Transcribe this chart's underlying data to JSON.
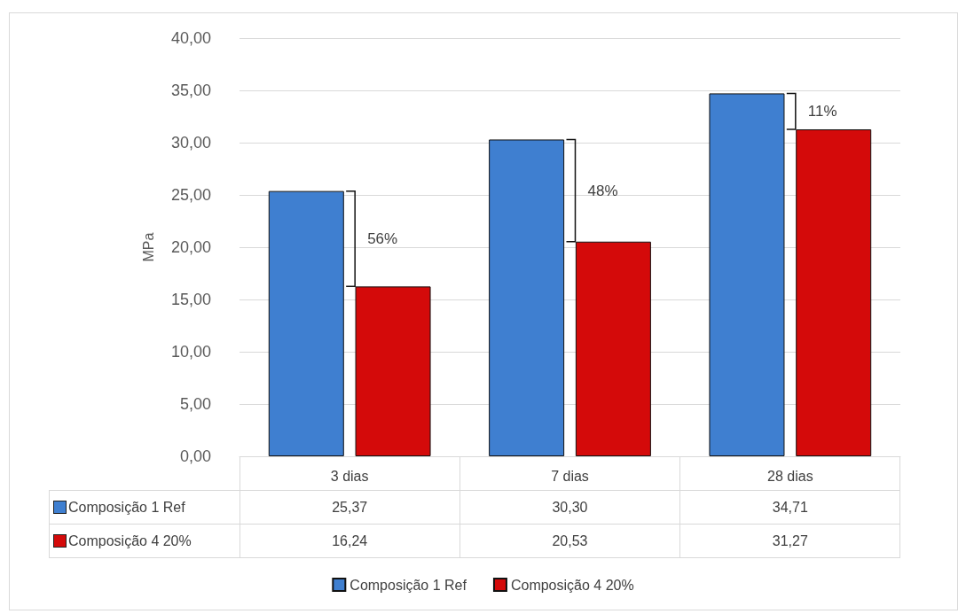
{
  "chart_data": {
    "type": "bar",
    "ylabel": "MPa",
    "categories": [
      "3 dias",
      "7 dias",
      "28 dias"
    ],
    "series": [
      {
        "name": "Composição 1 Ref",
        "color": "#3f7fd0",
        "values": [
          25.37,
          30.3,
          34.71
        ],
        "value_labels": [
          "25,37",
          "30,30",
          "34,71"
        ]
      },
      {
        "name": "Composição 4 20%",
        "color": "#d40a0a",
        "values": [
          16.24,
          20.53,
          31.27
        ],
        "value_labels": [
          "16,24",
          "20,53",
          "31,27"
        ]
      }
    ],
    "ylim": [
      0,
      40
    ],
    "yticks": [
      {
        "value": 0,
        "label": "0,00"
      },
      {
        "value": 5,
        "label": "5,00"
      },
      {
        "value": 10,
        "label": "10,00"
      },
      {
        "value": 15,
        "label": "15,00"
      },
      {
        "value": 20,
        "label": "20,00"
      },
      {
        "value": 25,
        "label": "25,00"
      },
      {
        "value": 30,
        "label": "30,00"
      },
      {
        "value": 35,
        "label": "35,00"
      },
      {
        "value": 40,
        "label": "40,00"
      }
    ],
    "annotations": [
      "56%",
      "48%",
      "11%"
    ],
    "grid": "y",
    "legend": "bottom"
  }
}
